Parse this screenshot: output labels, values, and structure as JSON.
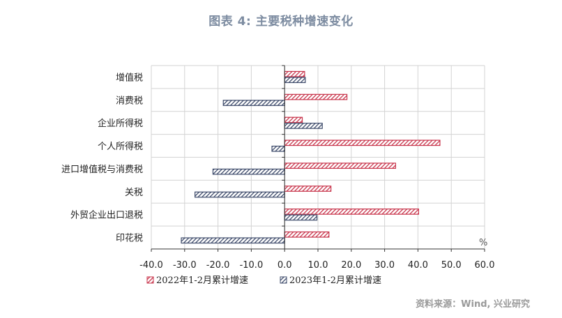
{
  "title": "图表 4:  主要税种增速变化",
  "source": "资料来源：Wind, 兴业研究",
  "colors": {
    "series1": "#c8344b",
    "series2": "#3e4b6b",
    "grid": "#d3d3d3"
  },
  "chart_data": {
    "type": "bar",
    "orientation": "horizontal",
    "categories": [
      "增值税",
      "消费税",
      "企业所得税",
      "个人所得税",
      "进口增值税与消费税",
      "关税",
      "外贸企业出口退税",
      "印花税"
    ],
    "series": [
      {
        "name": "2022年1-2月累计增速",
        "values": [
          6.0,
          18.7,
          5.3,
          46.6,
          33.3,
          13.9,
          40.2,
          13.3
        ]
      },
      {
        "name": "2023年1-2月累计增速",
        "values": [
          6.2,
          -18.4,
          11.3,
          -3.8,
          -21.5,
          -26.9,
          9.7,
          -31.0
        ]
      }
    ],
    "xlim": [
      -40,
      60
    ],
    "xticks": [
      "-40.0",
      "-30.0",
      "-20.0",
      "-10.0",
      "0.0",
      "10.0",
      "20.0",
      "30.0",
      "40.0",
      "50.0",
      "60.0"
    ],
    "unit_label": "%",
    "grid": true,
    "legend_position": "bottom"
  }
}
